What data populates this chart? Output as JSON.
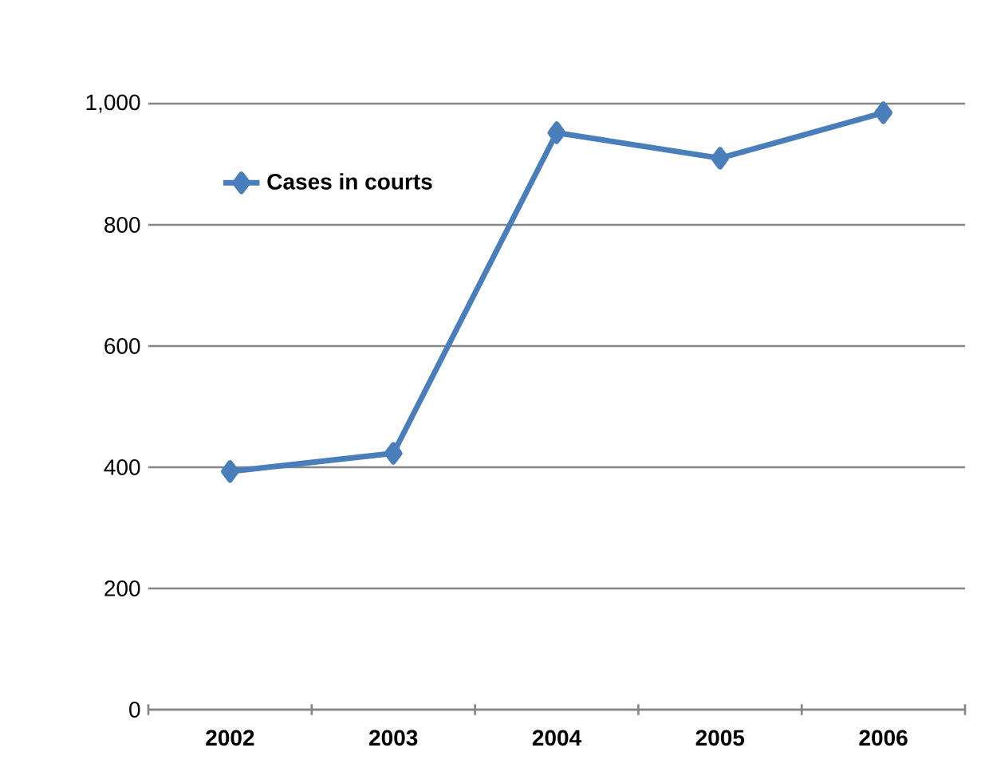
{
  "chart_data": {
    "type": "line",
    "categories": [
      "2002",
      "2003",
      "2004",
      "2005",
      "2006"
    ],
    "series": [
      {
        "name": "Cases in courts",
        "color": "#4a7ebb",
        "values": [
          393,
          423,
          952,
          910,
          985
        ]
      }
    ],
    "ylim": [
      0,
      1000
    ],
    "yticks": [
      0,
      200,
      400,
      600,
      800,
      {
        "value": 1000,
        "label": "1,000"
      }
    ],
    "grid": "y",
    "legend": "top left",
    "marker": "diamond",
    "line_style": "solid"
  }
}
